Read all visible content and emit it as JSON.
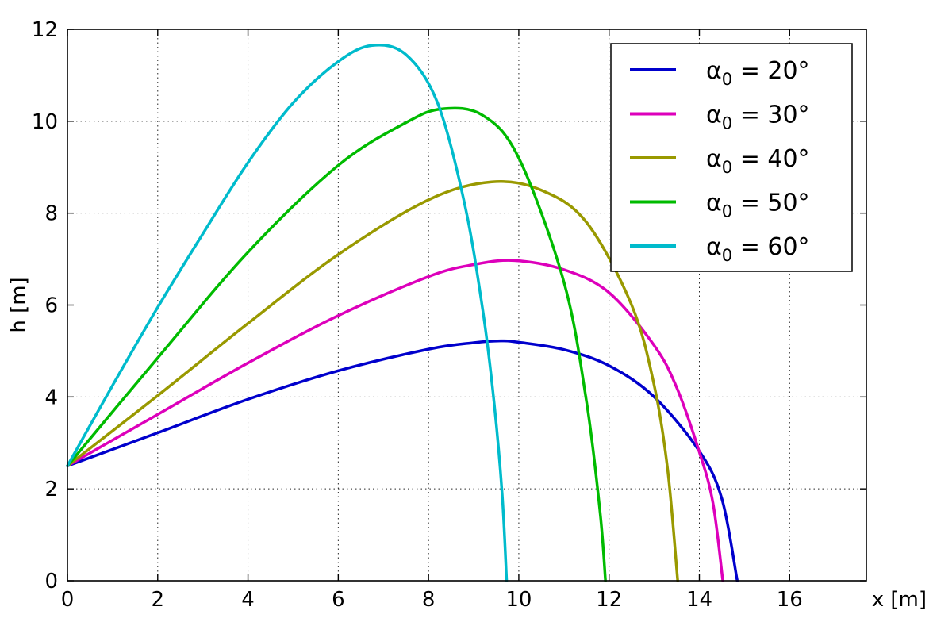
{
  "chart_data": {
    "type": "line",
    "title": "",
    "xlabel": "x [m]",
    "ylabel": "h [m]",
    "xlim": [
      0,
      17.7
    ],
    "ylim": [
      0,
      12
    ],
    "x_ticks": [
      0,
      2,
      4,
      6,
      8,
      10,
      12,
      14,
      16
    ],
    "y_ticks": [
      0,
      2,
      4,
      6,
      8,
      10,
      12
    ],
    "grid": true,
    "legend_position": "top-right",
    "series": [
      {
        "name": "α0 = 20°",
        "label_base": "α",
        "label_sub": "0",
        "label_rest": " = 20°",
        "color": "#0000cc",
        "x": [
          0,
          2,
          4,
          6,
          8,
          9,
          9.6,
          10,
          11,
          12,
          13,
          14,
          14.5,
          14.84
        ],
        "y": [
          2.5,
          3.22,
          3.95,
          4.57,
          5.04,
          5.18,
          5.22,
          5.19,
          5.03,
          4.68,
          4.0,
          2.82,
          1.78,
          0
        ]
      },
      {
        "name": "α0 = 30°",
        "label_base": "α",
        "label_sub": "0",
        "label_rest": " = 30°",
        "color": "#dd00bb",
        "x": [
          0,
          2,
          4,
          6,
          8,
          9,
          9.9,
          11,
          12,
          13,
          13.5,
          14,
          14.3,
          14.52
        ],
        "y": [
          2.5,
          3.62,
          4.74,
          5.77,
          6.62,
          6.88,
          6.97,
          6.77,
          6.27,
          5.12,
          4.2,
          2.8,
          1.7,
          0
        ]
      },
      {
        "name": "α0 = 40°",
        "label_base": "α",
        "label_sub": "0",
        "label_rest": " = 40°",
        "color": "#999900",
        "x": [
          0,
          2,
          4,
          6,
          8,
          9.4,
          10.5,
          11.5,
          12.5,
          13,
          13.3,
          13.52
        ],
        "y": [
          2.5,
          4.03,
          5.6,
          7.1,
          8.29,
          8.68,
          8.5,
          7.8,
          6.0,
          4.25,
          2.4,
          0
        ]
      },
      {
        "name": "α0 = 50°",
        "label_base": "α",
        "label_sub": "0",
        "label_rest": " = 50°",
        "color": "#00bb00",
        "x": [
          0,
          2,
          4,
          6,
          7.5,
          8.3,
          9.2,
          10,
          11,
          11.5,
          11.8,
          11.92
        ],
        "y": [
          2.5,
          4.85,
          7.15,
          9.04,
          9.97,
          10.27,
          10.13,
          9.2,
          6.5,
          3.9,
          1.5,
          0
        ]
      },
      {
        "name": "α0 = 60°",
        "label_base": "α",
        "label_sub": "0",
        "label_rest": " = 60°",
        "color": "#00bbcc",
        "x": [
          0,
          1,
          2,
          3,
          4,
          5,
          6,
          6.75,
          7.5,
          8.2,
          8.8,
          9.2,
          9.45,
          9.63,
          9.73
        ],
        "y": [
          2.5,
          4.25,
          5.95,
          7.55,
          9.1,
          10.4,
          11.3,
          11.65,
          11.45,
          10.4,
          8.2,
          5.9,
          3.9,
          1.9,
          0
        ]
      }
    ]
  }
}
